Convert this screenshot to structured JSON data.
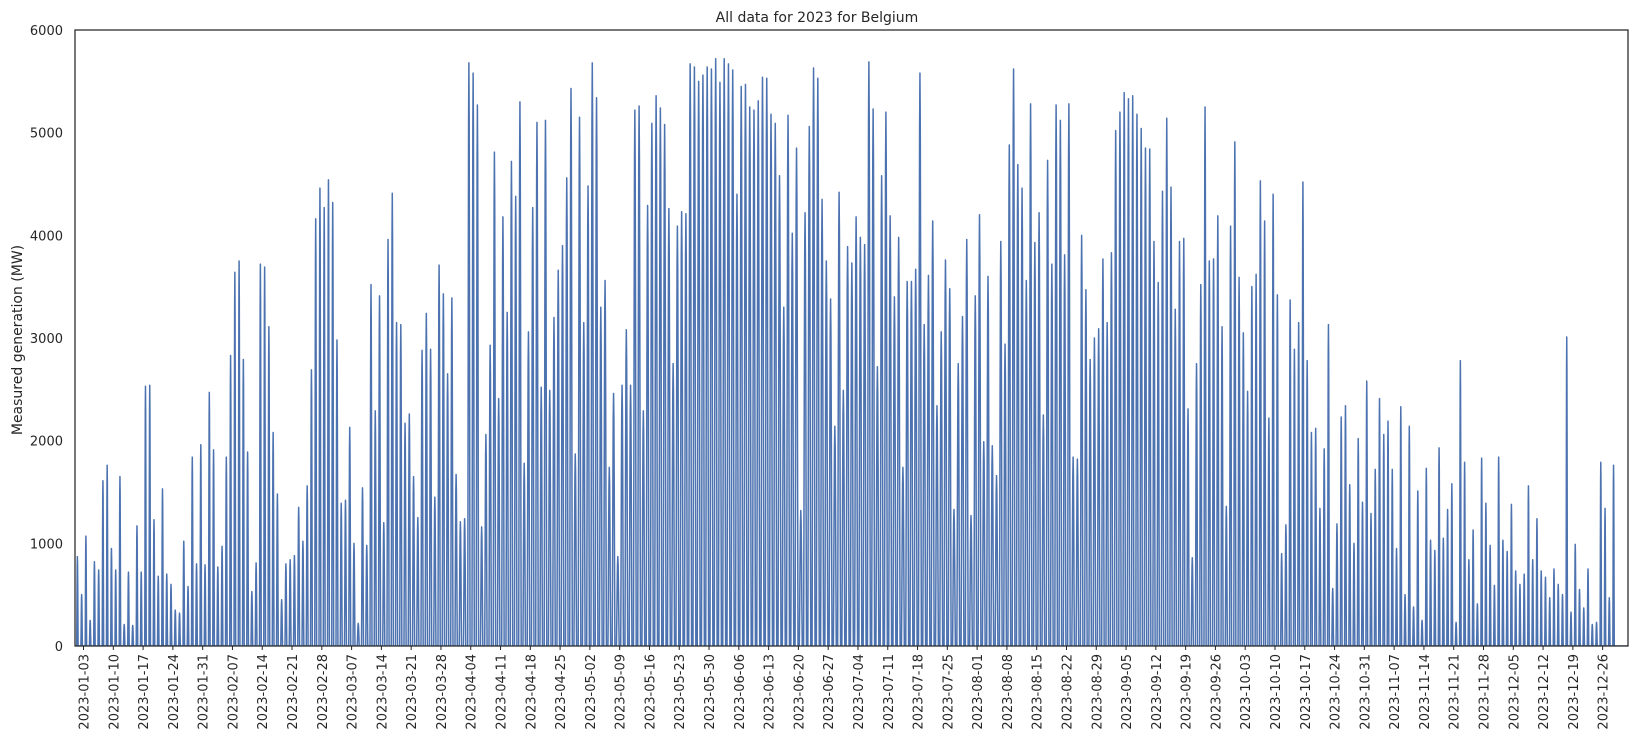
{
  "chart_data": {
    "type": "line",
    "title": "All data for 2023 for Belgium",
    "xlabel": "",
    "ylabel": "Measured generation (MW)",
    "ylim": [
      0,
      6000
    ],
    "yticks": [
      0,
      1000,
      2000,
      3000,
      4000,
      5000,
      6000
    ],
    "xlim": [
      "2023-01-01",
      "2023-12-31"
    ],
    "xticks": [
      "2023-01-03",
      "2023-01-10",
      "2023-01-17",
      "2023-01-24",
      "2023-01-31",
      "2023-02-07",
      "2023-02-14",
      "2023-02-21",
      "2023-02-28",
      "2023-03-07",
      "2023-03-14",
      "2023-03-21",
      "2023-03-28",
      "2023-04-04",
      "2023-04-11",
      "2023-04-18",
      "2023-04-25",
      "2023-05-02",
      "2023-05-09",
      "2023-05-16",
      "2023-05-23",
      "2023-05-30",
      "2023-06-06",
      "2023-06-13",
      "2023-06-20",
      "2023-06-27",
      "2023-07-04",
      "2023-07-11",
      "2023-07-18",
      "2023-07-25",
      "2023-08-01",
      "2023-08-08",
      "2023-08-15",
      "2023-08-22",
      "2023-08-29",
      "2023-09-05",
      "2023-09-12",
      "2023-09-19",
      "2023-09-26",
      "2023-10-03",
      "2023-10-10",
      "2023-10-17",
      "2023-10-24",
      "2023-10-31",
      "2023-11-07",
      "2023-11-14",
      "2023-11-21",
      "2023-11-28",
      "2023-12-05",
      "2023-12-12",
      "2023-12-19",
      "2023-12-26"
    ],
    "grid": false,
    "line_color": "#4c72b0",
    "series": [
      {
        "x": [
          "2023-01-01",
          "2023-01-02",
          "2023-01-03",
          "2023-01-04",
          "2023-01-05",
          "2023-01-06",
          "2023-01-07",
          "2023-01-08",
          "2023-01-09",
          "2023-01-10",
          "2023-01-11",
          "2023-01-12",
          "2023-01-13",
          "2023-01-14",
          "2023-01-15",
          "2023-01-16",
          "2023-01-17",
          "2023-01-18",
          "2023-01-19",
          "2023-01-20",
          "2023-01-21",
          "2023-01-22",
          "2023-01-23",
          "2023-01-24",
          "2023-01-25",
          "2023-01-26",
          "2023-01-27",
          "2023-01-28",
          "2023-01-29",
          "2023-01-30",
          "2023-01-31",
          "2023-02-01",
          "2023-02-02",
          "2023-02-03",
          "2023-02-04",
          "2023-02-05",
          "2023-02-06",
          "2023-02-07",
          "2023-02-08",
          "2023-02-09",
          "2023-02-10",
          "2023-02-11",
          "2023-02-12",
          "2023-02-13",
          "2023-02-14",
          "2023-02-15",
          "2023-02-16",
          "2023-02-17",
          "2023-02-18",
          "2023-02-19",
          "2023-02-20",
          "2023-02-21",
          "2023-02-22",
          "2023-02-23",
          "2023-02-24",
          "2023-02-25",
          "2023-02-26",
          "2023-02-27",
          "2023-02-28",
          "2023-03-01",
          "2023-03-02",
          "2023-03-03",
          "2023-03-04",
          "2023-03-05",
          "2023-03-06",
          "2023-03-07",
          "2023-03-08",
          "2023-03-09",
          "2023-03-10",
          "2023-03-11",
          "2023-03-12",
          "2023-03-13",
          "2023-03-14",
          "2023-03-15",
          "2023-03-16",
          "2023-03-17",
          "2023-03-18",
          "2023-03-19",
          "2023-03-20",
          "2023-03-21",
          "2023-03-22",
          "2023-03-23",
          "2023-03-24",
          "2023-03-25",
          "2023-03-26",
          "2023-03-27",
          "2023-03-28",
          "2023-03-29",
          "2023-03-30",
          "2023-03-31",
          "2023-04-01",
          "2023-04-02",
          "2023-04-03",
          "2023-04-04",
          "2023-04-05",
          "2023-04-06",
          "2023-04-07",
          "2023-04-08",
          "2023-04-09",
          "2023-04-10",
          "2023-04-11",
          "2023-04-12",
          "2023-04-13",
          "2023-04-14",
          "2023-04-15",
          "2023-04-16",
          "2023-04-17",
          "2023-04-18",
          "2023-04-19",
          "2023-04-20",
          "2023-04-21",
          "2023-04-22",
          "2023-04-23",
          "2023-04-24",
          "2023-04-25",
          "2023-04-26",
          "2023-04-27",
          "2023-04-28",
          "2023-04-29",
          "2023-04-30",
          "2023-05-01",
          "2023-05-02",
          "2023-05-03",
          "2023-05-04",
          "2023-05-05",
          "2023-05-06",
          "2023-05-07",
          "2023-05-08",
          "2023-05-09",
          "2023-05-10",
          "2023-05-11",
          "2023-05-12",
          "2023-05-13",
          "2023-05-14",
          "2023-05-15",
          "2023-05-16",
          "2023-05-17",
          "2023-05-18",
          "2023-05-19",
          "2023-05-20",
          "2023-05-21",
          "2023-05-22",
          "2023-05-23",
          "2023-05-24",
          "2023-05-25",
          "2023-05-26",
          "2023-05-27",
          "2023-05-28",
          "2023-05-29",
          "2023-05-30",
          "2023-05-31",
          "2023-06-01",
          "2023-06-02",
          "2023-06-03",
          "2023-06-04",
          "2023-06-05",
          "2023-06-06",
          "2023-06-07",
          "2023-06-08",
          "2023-06-09",
          "2023-06-10",
          "2023-06-11",
          "2023-06-12",
          "2023-06-13",
          "2023-06-14",
          "2023-06-15",
          "2023-06-16",
          "2023-06-17",
          "2023-06-18",
          "2023-06-19",
          "2023-06-20",
          "2023-06-21",
          "2023-06-22",
          "2023-06-23",
          "2023-06-24",
          "2023-06-25",
          "2023-06-26",
          "2023-06-27",
          "2023-06-28",
          "2023-06-29",
          "2023-06-30",
          "2023-07-01",
          "2023-07-02",
          "2023-07-03",
          "2023-07-04",
          "2023-07-05",
          "2023-07-06",
          "2023-07-07",
          "2023-07-08",
          "2023-07-09",
          "2023-07-10",
          "2023-07-11",
          "2023-07-12",
          "2023-07-13",
          "2023-07-14",
          "2023-07-15",
          "2023-07-16",
          "2023-07-17",
          "2023-07-18",
          "2023-07-19",
          "2023-07-20",
          "2023-07-21",
          "2023-07-22",
          "2023-07-23",
          "2023-07-24",
          "2023-07-25",
          "2023-07-26",
          "2023-07-27",
          "2023-07-28",
          "2023-07-29",
          "2023-07-30",
          "2023-07-31",
          "2023-08-01",
          "2023-08-02",
          "2023-08-03",
          "2023-08-04",
          "2023-08-05",
          "2023-08-06",
          "2023-08-07",
          "2023-08-08",
          "2023-08-09",
          "2023-08-10",
          "2023-08-11",
          "2023-08-12",
          "2023-08-13",
          "2023-08-14",
          "2023-08-15",
          "2023-08-16",
          "2023-08-17",
          "2023-08-18",
          "2023-08-19",
          "2023-08-20",
          "2023-08-21",
          "2023-08-22",
          "2023-08-23",
          "2023-08-24",
          "2023-08-25",
          "2023-08-26",
          "2023-08-27",
          "2023-08-28",
          "2023-08-29",
          "2023-08-30",
          "2023-08-31",
          "2023-09-01",
          "2023-09-02",
          "2023-09-03",
          "2023-09-04",
          "2023-09-05",
          "2023-09-06",
          "2023-09-07",
          "2023-09-08",
          "2023-09-09",
          "2023-09-10",
          "2023-09-11",
          "2023-09-12",
          "2023-09-13",
          "2023-09-14",
          "2023-09-15",
          "2023-09-16",
          "2023-09-17",
          "2023-09-18",
          "2023-09-19",
          "2023-09-20",
          "2023-09-21",
          "2023-09-22",
          "2023-09-23",
          "2023-09-24",
          "2023-09-25",
          "2023-09-26",
          "2023-09-27",
          "2023-09-28",
          "2023-09-29",
          "2023-09-30",
          "2023-10-01",
          "2023-10-02",
          "2023-10-03",
          "2023-10-04",
          "2023-10-05",
          "2023-10-06",
          "2023-10-07",
          "2023-10-08",
          "2023-10-09",
          "2023-10-10",
          "2023-10-11",
          "2023-10-12",
          "2023-10-13",
          "2023-10-14",
          "2023-10-15",
          "2023-10-16",
          "2023-10-17",
          "2023-10-18",
          "2023-10-19",
          "2023-10-20",
          "2023-10-21",
          "2023-10-22",
          "2023-10-23",
          "2023-10-24",
          "2023-10-25",
          "2023-10-26",
          "2023-10-27",
          "2023-10-28",
          "2023-10-29",
          "2023-10-30",
          "2023-10-31",
          "2023-11-01",
          "2023-11-02",
          "2023-11-03",
          "2023-11-04",
          "2023-11-05",
          "2023-11-06",
          "2023-11-07",
          "2023-11-08",
          "2023-11-09",
          "2023-11-10",
          "2023-11-11",
          "2023-11-12",
          "2023-11-13",
          "2023-11-14",
          "2023-11-15",
          "2023-11-16",
          "2023-11-17",
          "2023-11-18",
          "2023-11-19",
          "2023-11-20",
          "2023-11-21",
          "2023-11-22",
          "2023-11-23",
          "2023-11-24",
          "2023-11-25",
          "2023-11-26",
          "2023-11-27",
          "2023-11-28",
          "2023-11-29",
          "2023-11-30",
          "2023-12-01",
          "2023-12-02",
          "2023-12-03",
          "2023-12-04",
          "2023-12-05",
          "2023-12-06",
          "2023-12-07",
          "2023-12-08",
          "2023-12-09",
          "2023-12-10",
          "2023-12-11",
          "2023-12-12",
          "2023-12-13",
          "2023-12-14",
          "2023-12-15",
          "2023-12-16",
          "2023-12-17",
          "2023-12-18",
          "2023-12-19",
          "2023-12-20",
          "2023-12-21",
          "2023-12-22",
          "2023-12-23",
          "2023-12-24",
          "2023-12-25",
          "2023-12-26",
          "2023-12-27",
          "2023-12-28",
          "2023-12-29",
          "2023-12-30",
          "2023-12-31"
        ],
        "y_daily_peak": [
          870,
          500,
          1070,
          250,
          820,
          740,
          1610,
          1760,
          950,
          740,
          1650,
          210,
          720,
          200,
          1170,
          720,
          2530,
          2540,
          1230,
          680,
          1530,
          700,
          600,
          350,
          320,
          1020,
          580,
          1840,
          800,
          1960,
          790,
          2470,
          1910,
          770,
          970,
          1840,
          2830,
          3640,
          3750,
          2790,
          1890,
          530,
          810,
          3720,
          3690,
          3110,
          2080,
          1480,
          450,
          800,
          840,
          880,
          1350,
          1020,
          1560,
          2690,
          4160,
          4460,
          4270,
          4540,
          4320,
          2980,
          1390,
          1420,
          2130,
          1000,
          220,
          1540,
          980,
          3520,
          2290,
          3410,
          1200,
          3960,
          4410,
          3150,
          3130,
          2170,
          2260,
          1650,
          1250,
          2880,
          3240,
          2890,
          1450,
          3710,
          3430,
          2650,
          3390,
          1670,
          1210,
          1240,
          5680,
          5580,
          5270,
          1160,
          2060,
          2930,
          4810,
          2410,
          4180,
          3250,
          4720,
          4380,
          5300,
          1780,
          3060,
          4270,
          5100,
          2520,
          5120,
          2490,
          3200,
          3660,
          3900,
          4560,
          5430,
          1870,
          5150,
          3150,
          4480,
          5680,
          5340,
          3300,
          3560,
          1740,
          2460,
          870,
          2540,
          3080,
          2540,
          5220,
          5260,
          2290,
          4290,
          5090,
          5360,
          5240,
          5080,
          4260,
          2750,
          4090,
          4230,
          4210,
          5670,
          5640,
          5500,
          5560,
          5640,
          5620,
          5720,
          5490,
          5720,
          5670,
          5610,
          4400,
          5450,
          5470,
          5250,
          5220,
          5310,
          5540,
          5530,
          5180,
          5090,
          4580,
          3300,
          5170,
          4020,
          4850,
          1320,
          4220,
          5060,
          5630,
          5530,
          4350,
          3750,
          3380,
          2140,
          4420,
          2490,
          3890,
          3730,
          4180,
          3980,
          3910,
          5690,
          5230,
          2720,
          4580,
          5200,
          4190,
          3400,
          3980,
          1740,
          3550,
          3550,
          3670,
          5580,
          3130,
          3610,
          4140,
          2340,
          3060,
          3760,
          3480,
          1330,
          2750,
          3210,
          3960,
          1270,
          3410,
          4200,
          1990,
          3600,
          1950,
          1660,
          3940,
          2940,
          4880,
          5620,
          4690,
          4460,
          3560,
          5280,
          3930,
          4220,
          2250,
          4730,
          3720,
          5270,
          5120,
          3810,
          5280,
          1840,
          1820,
          4000,
          3470,
          2790,
          3000,
          3090,
          3770,
          3150,
          3830,
          5020,
          5200,
          5390,
          5330,
          5360,
          5180,
          5040,
          4850,
          4840,
          3940,
          3540,
          4430,
          5140,
          4470,
          3280,
          3940,
          3970,
          2310,
          860,
          2750,
          3520,
          5250,
          3750,
          3770,
          4190,
          3110,
          1360,
          4090,
          4910,
          3590,
          3050,
          2480,
          3500,
          3620,
          4530,
          4140,
          2220,
          4400,
          3420,
          900,
          1180,
          3370,
          2890,
          3150,
          4520,
          2780,
          2080,
          2120,
          1340,
          1920,
          3130,
          560,
          1190,
          2230,
          2340,
          1570,
          1000,
          2020,
          1400,
          2580,
          1290,
          1720,
          2410,
          2060,
          2190,
          1720,
          950,
          2330,
          500,
          2140,
          380,
          1510,
          250,
          1730,
          1030,
          930,
          1930,
          1050,
          1330,
          1580,
          230,
          2780,
          1790,
          840,
          1130,
          410,
          1830,
          1390,
          980,
          590,
          1840,
          1030,
          920,
          1380,
          730,
          600,
          700,
          1560,
          840,
          1240,
          730,
          670,
          470,
          750,
          600,
          500,
          3010,
          330,
          990,
          550,
          370,
          750,
          210,
          230,
          1790,
          1340,
          470,
          1760
        ]
      }
    ]
  }
}
